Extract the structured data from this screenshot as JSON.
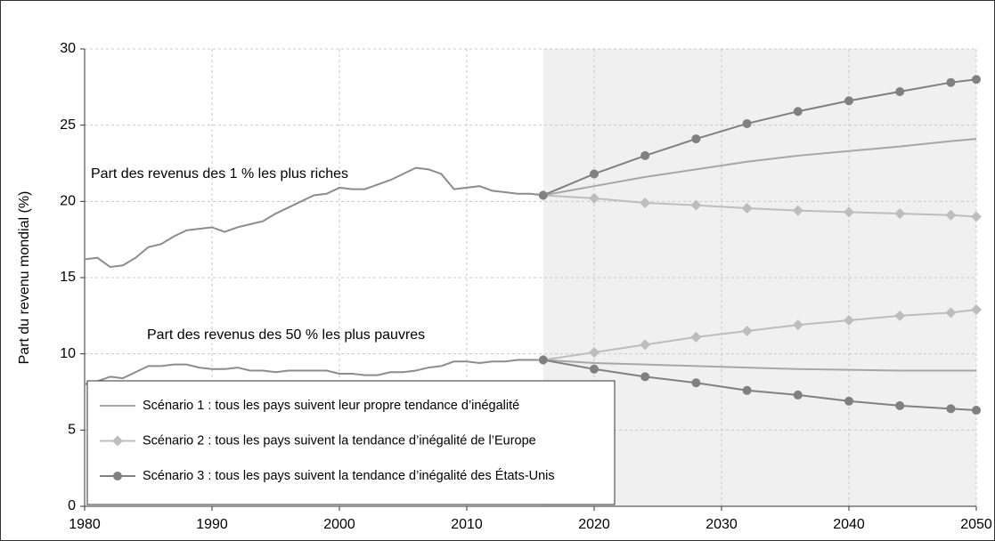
{
  "chart_data": {
    "type": "line",
    "ylabel": "Part du revenu mondial (%)",
    "xlim": [
      1980,
      2050
    ],
    "ylim": [
      0,
      30
    ],
    "xticks": [
      1980,
      1990,
      2000,
      2010,
      2020,
      2030,
      2040,
      2050
    ],
    "yticks": [
      0,
      5,
      10,
      15,
      20,
      25,
      30
    ],
    "grid": true,
    "history_x": [
      1980,
      1981,
      1982,
      1983,
      1984,
      1985,
      1986,
      1987,
      1988,
      1989,
      1990,
      1991,
      1992,
      1993,
      1994,
      1995,
      1996,
      1997,
      1998,
      1999,
      2000,
      2001,
      2002,
      2003,
      2004,
      2005,
      2006,
      2007,
      2008,
      2009,
      2010,
      2011,
      2012,
      2013,
      2014,
      2015,
      2016
    ],
    "projection_x": [
      2016,
      2020,
      2024,
      2028,
      2032,
      2036,
      2040,
      2044,
      2048,
      2050
    ],
    "scenarios": [
      {
        "name": "Scénario 1 : tous les pays suivent leur propre tendance d’inégalité",
        "color": "#a6a6a6",
        "marker": "none"
      },
      {
        "name": "Scénario 2 : tous les pays suivent la tendance d’inégalité de l’Europe",
        "color": "#bdbdbd",
        "marker": "diamond"
      },
      {
        "name": "Scénario 3 : tous les pays suivent la tendance d’inégalité des États-Unis",
        "color": "#808080",
        "marker": "circle"
      }
    ],
    "groups": [
      {
        "label": "Part des revenus des 1 % les plus riches",
        "color": "#8c8c8c",
        "history": [
          16.2,
          16.3,
          15.7,
          15.8,
          16.3,
          17.0,
          17.2,
          17.7,
          18.1,
          18.2,
          18.3,
          18.0,
          18.3,
          18.5,
          18.7,
          19.2,
          19.6,
          20.0,
          20.4,
          20.5,
          20.9,
          20.8,
          20.8,
          21.1,
          21.4,
          21.8,
          22.2,
          22.1,
          21.8,
          20.8,
          20.9,
          21.0,
          20.7,
          20.6,
          20.5,
          20.5,
          20.4
        ],
        "projections": [
          [
            20.4,
            21.0,
            21.6,
            22.1,
            22.6,
            23.0,
            23.3,
            23.6,
            23.95,
            24.1
          ],
          [
            20.4,
            20.2,
            19.9,
            19.75,
            19.55,
            19.4,
            19.3,
            19.2,
            19.1,
            19.0
          ],
          [
            20.4,
            21.8,
            23.0,
            24.1,
            25.1,
            25.9,
            26.6,
            27.2,
            27.8,
            28.0
          ]
        ]
      },
      {
        "label": "Part des revenus des 50 % les plus pauvres",
        "color": "#8c8c8c",
        "history": [
          8.0,
          8.2,
          8.5,
          8.4,
          8.8,
          9.2,
          9.2,
          9.3,
          9.3,
          9.1,
          9.0,
          9.0,
          9.1,
          8.9,
          8.9,
          8.8,
          8.9,
          8.9,
          8.9,
          8.9,
          8.7,
          8.7,
          8.6,
          8.6,
          8.8,
          8.8,
          8.9,
          9.1,
          9.2,
          9.5,
          9.5,
          9.4,
          9.5,
          9.5,
          9.6,
          9.6,
          9.6
        ],
        "projections": [
          [
            9.6,
            9.4,
            9.3,
            9.2,
            9.1,
            9.0,
            8.95,
            8.9,
            8.9,
            8.9
          ],
          [
            9.6,
            10.1,
            10.6,
            11.1,
            11.5,
            11.9,
            12.2,
            12.5,
            12.7,
            12.9
          ],
          [
            9.6,
            9.0,
            8.5,
            8.1,
            7.6,
            7.3,
            6.9,
            6.6,
            6.4,
            6.3
          ]
        ]
      }
    ]
  }
}
